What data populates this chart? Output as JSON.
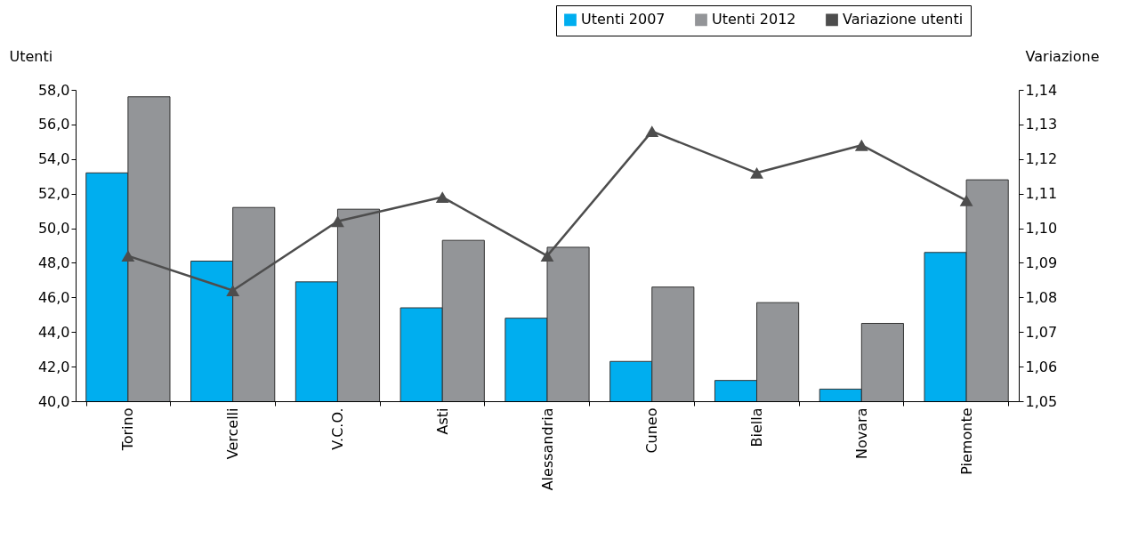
{
  "chart_data": {
    "type": "bar",
    "ylabel": "Utenti",
    "y2label": "Variazione",
    "categories": [
      "Torino",
      "Vercelli",
      "V.C.O.",
      "Asti",
      "Alessandria",
      "Cuneo",
      "Biella",
      "Novara",
      "Piemonte"
    ],
    "series": [
      {
        "name": "Utenti 2007",
        "color": "#00aeef",
        "values": [
          53.2,
          48.1,
          46.9,
          45.4,
          44.8,
          42.3,
          41.2,
          40.7,
          48.6
        ]
      },
      {
        "name": "Utenti 2012",
        "color": "#939598",
        "values": [
          57.6,
          51.2,
          51.1,
          49.3,
          48.9,
          46.6,
          45.7,
          44.5,
          52.8
        ]
      },
      {
        "name": "Variazione utenti",
        "type": "line",
        "axis": "y2",
        "marker": "triangle",
        "color": "#4d4d4d",
        "values": [
          1.092,
          1.082,
          1.102,
          1.109,
          1.092,
          1.128,
          1.116,
          1.124,
          1.108
        ]
      }
    ],
    "ylim": [
      40,
      58
    ],
    "yticks": [
      {
        "value": 40,
        "label": "40,0"
      },
      {
        "value": 42,
        "label": "42,0"
      },
      {
        "value": 44,
        "label": "44,0"
      },
      {
        "value": 46,
        "label": "46,0"
      },
      {
        "value": 48,
        "label": "48,0"
      },
      {
        "value": 50,
        "label": "50,0"
      },
      {
        "value": 52,
        "label": "52,0"
      },
      {
        "value": 54,
        "label": "54,0"
      },
      {
        "value": 56,
        "label": "56,0"
      },
      {
        "value": 58,
        "label": "58,0"
      }
    ],
    "y2lim": [
      1.05,
      1.14
    ],
    "y2ticks": [
      {
        "value": 1.05,
        "label": "1,05"
      },
      {
        "value": 1.06,
        "label": "1,06"
      },
      {
        "value": 1.07,
        "label": "1,07"
      },
      {
        "value": 1.08,
        "label": "1,08"
      },
      {
        "value": 1.09,
        "label": "1,09"
      },
      {
        "value": 1.1,
        "label": "1,10"
      },
      {
        "value": 1.11,
        "label": "1,11"
      },
      {
        "value": 1.12,
        "label": "1,12"
      },
      {
        "value": 1.13,
        "label": "1,13"
      },
      {
        "value": 1.14,
        "label": "1,14"
      }
    ],
    "grid": false,
    "legend": "top right"
  }
}
